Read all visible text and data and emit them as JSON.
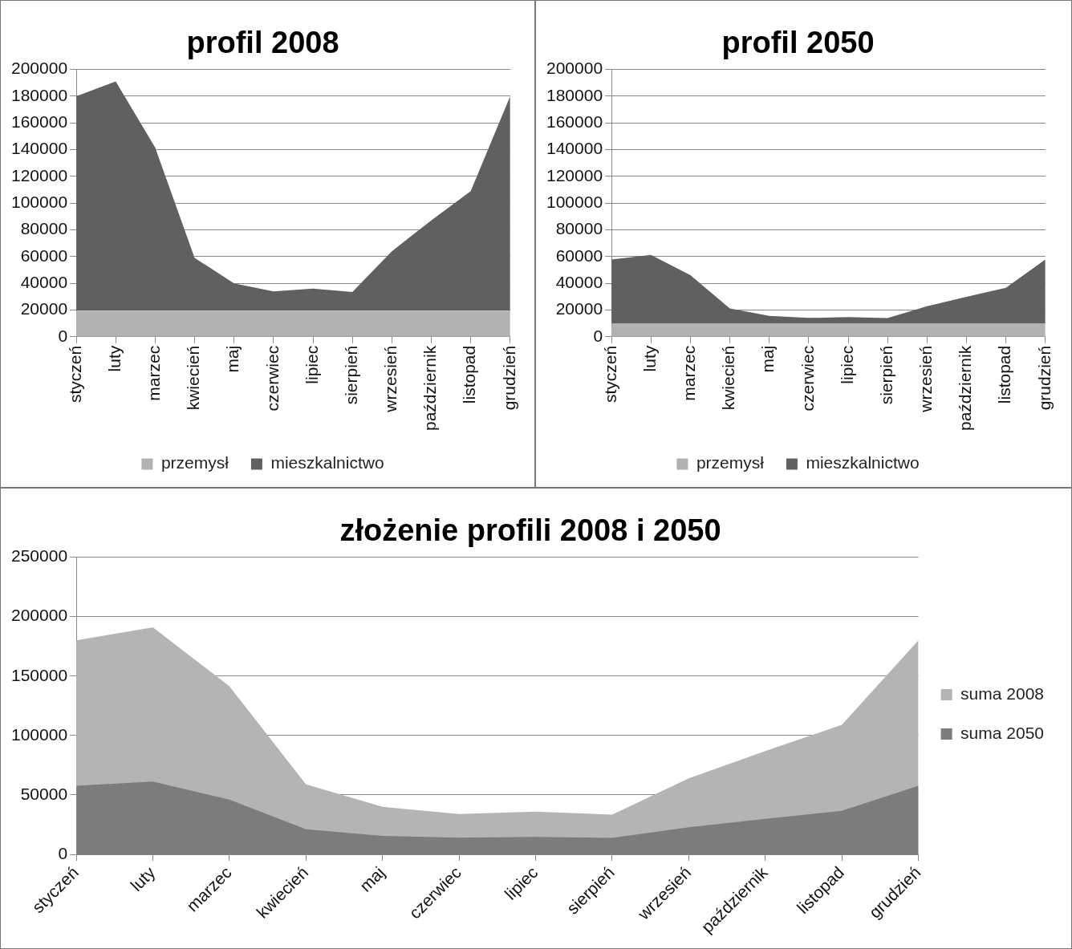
{
  "chart_data": [
    {
      "type": "area",
      "title": "profil 2008",
      "stacked": true,
      "categories": [
        "styczeń",
        "luty",
        "marzec",
        "kwiecień",
        "maj",
        "czerwiec",
        "lipiec",
        "sierpień",
        "wrzesień",
        "październik",
        "listopad",
        "grudzień"
      ],
      "series": [
        {
          "name": "przemysł",
          "color": "#b2b2b2",
          "values": [
            19500,
            19500,
            19500,
            19500,
            19500,
            19500,
            19500,
            19500,
            19500,
            19500,
            19500,
            19500
          ]
        },
        {
          "name": "mieszkalnictwo",
          "color": "#606060",
          "values": [
            160500,
            171500,
            122000,
            39500,
            20500,
            14500,
            16500,
            14000,
            44500,
            67500,
            89500,
            160500
          ]
        }
      ],
      "ylim": [
        0,
        200000
      ],
      "yticks": [
        0,
        20000,
        40000,
        60000,
        80000,
        100000,
        120000,
        140000,
        160000,
        180000,
        200000
      ],
      "grid": "y",
      "legend": "bottom"
    },
    {
      "type": "area",
      "title": "profil 2050",
      "stacked": true,
      "categories": [
        "styczeń",
        "luty",
        "marzec",
        "kwiecień",
        "maj",
        "czerwiec",
        "lipiec",
        "sierpień",
        "wrzesień",
        "październik",
        "listopad",
        "grudzień"
      ],
      "series": [
        {
          "name": "przemysł",
          "color": "#b2b2b2",
          "values": [
            9700,
            9700,
            9700,
            9700,
            9700,
            9700,
            9700,
            9700,
            9700,
            9700,
            9700,
            9700
          ]
        },
        {
          "name": "mieszkalnictwo",
          "color": "#606060",
          "values": [
            48100,
            51600,
            36400,
            11500,
            5900,
            4400,
            5000,
            4200,
            13200,
            20200,
            26900,
            48100
          ]
        }
      ],
      "ylim": [
        0,
        200000
      ],
      "yticks": [
        0,
        20000,
        40000,
        60000,
        80000,
        100000,
        120000,
        140000,
        160000,
        180000,
        200000
      ],
      "grid": "y",
      "legend": "bottom"
    },
    {
      "type": "area",
      "title": "złożenie profili 2008 i 2050",
      "categories": [
        "styczeń",
        "luty",
        "marzec",
        "kwiecień",
        "maj",
        "czerwiec",
        "lipiec",
        "sierpień",
        "wrzesień",
        "październik",
        "listopad",
        "grudzień"
      ],
      "series": [
        {
          "name": "suma 2008",
          "color": "#b4b4b4",
          "values": [
            180000,
            191000,
            141500,
            59000,
            40000,
            34000,
            36000,
            33500,
            64000,
            87000,
            109000,
            180000
          ]
        },
        {
          "name": "suma 2050",
          "color": "#7c7c7c",
          "values": [
            57800,
            61300,
            46100,
            21200,
            15600,
            14100,
            14700,
            13900,
            22900,
            29900,
            36600,
            57800
          ]
        }
      ],
      "ylim": [
        0,
        250000
      ],
      "yticks": [
        0,
        50000,
        100000,
        150000,
        200000,
        250000
      ],
      "grid": "y",
      "legend": "right"
    }
  ]
}
